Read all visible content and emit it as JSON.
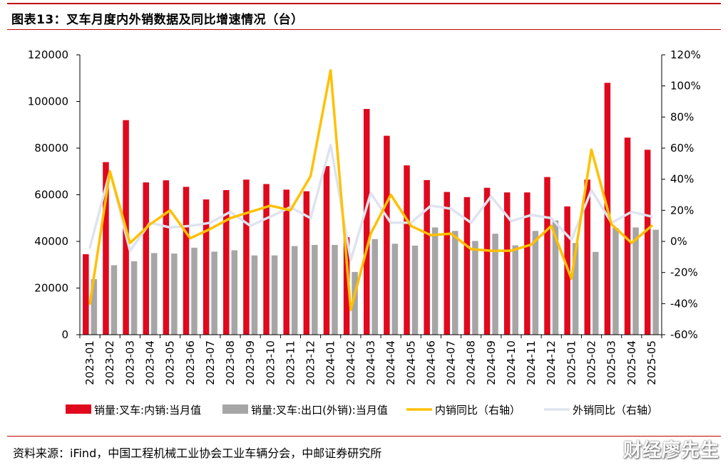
{
  "title": "图表13：叉车月度内外销数据及同比增速情况（台）",
  "source": "资料来源：iFind，中国工程机械工业协会工业车辆分会，中邮证券研究所",
  "watermark": "财经廖先生",
  "colors": {
    "domestic_sales": "#e0081d",
    "export_sales": "#a6a6a6",
    "domestic_yoy": "#ffc000",
    "export_yoy": "#dee3ef",
    "rule": "#c00000"
  },
  "chart_data": {
    "type": "bar",
    "categories": [
      "2023-01",
      "2023-02",
      "2023-03",
      "2023-04",
      "2023-05",
      "2023-06",
      "2023-07",
      "2023-08",
      "2023-09",
      "2023-10",
      "2023-11",
      "2023-12",
      "2024-01",
      "2024-02",
      "2024-03",
      "2024-04",
      "2024-05",
      "2024-06",
      "2024-07",
      "2024-08",
      "2024-09",
      "2024-10",
      "2024-11",
      "2024-12",
      "2025-01",
      "2025-02",
      "2025-03",
      "2025-04",
      "2025-05"
    ],
    "y_left": {
      "ylim": [
        0,
        120000
      ],
      "ticks": [
        "0",
        "20000",
        "40000",
        "60000",
        "80000",
        "100000",
        "120000"
      ]
    },
    "y_right": {
      "ylim": [
        -60,
        120
      ],
      "ticks": [
        "-60%",
        "-40%",
        "-20%",
        "0%",
        "20%",
        "40%",
        "60%",
        "80%",
        "100%",
        "120%"
      ]
    },
    "grid": false,
    "legend_position": "bottom",
    "series": [
      {
        "name": "销量:叉车:内销:当月值",
        "type": "bar",
        "axis": "left",
        "values": [
          34500,
          74000,
          92000,
          65300,
          66200,
          63400,
          58000,
          62000,
          66500,
          64600,
          62200,
          61500,
          72300,
          41800,
          96800,
          85300,
          72600,
          66300,
          61200,
          59000,
          63000,
          61000,
          61000,
          67600,
          55000,
          66500,
          108000,
          84500,
          79300
        ]
      },
      {
        "name": "销量:叉车:出口(外销):当月值",
        "type": "bar",
        "axis": "left",
        "values": [
          23800,
          29800,
          31500,
          35000,
          34800,
          37300,
          35600,
          36200,
          34000,
          34000,
          38000,
          38500,
          38500,
          26900,
          41000,
          39000,
          38200,
          46000,
          44500,
          40200,
          43300,
          38300,
          44500,
          49000,
          39300,
          35500,
          45800,
          46000,
          45000
        ]
      },
      {
        "name": "内销同比（右轴）",
        "type": "line",
        "axis": "right",
        "values": [
          -40,
          45,
          -1,
          11,
          20,
          2,
          8,
          15,
          19,
          23,
          20,
          42,
          110,
          -44,
          5,
          30,
          10,
          4,
          5,
          -5,
          -6,
          -6,
          -2,
          10,
          -24,
          59,
          11,
          -1,
          10
        ]
      },
      {
        "name": "外销同比（右轴）",
        "type": "line",
        "axis": "right",
        "values": [
          -4,
          45,
          -6,
          12,
          9,
          10,
          12,
          19,
          10,
          16,
          22,
          15,
          62,
          -12,
          31,
          12,
          12,
          23,
          21,
          12,
          29,
          13,
          17,
          15,
          1,
          33,
          12,
          19,
          16
        ]
      }
    ]
  }
}
